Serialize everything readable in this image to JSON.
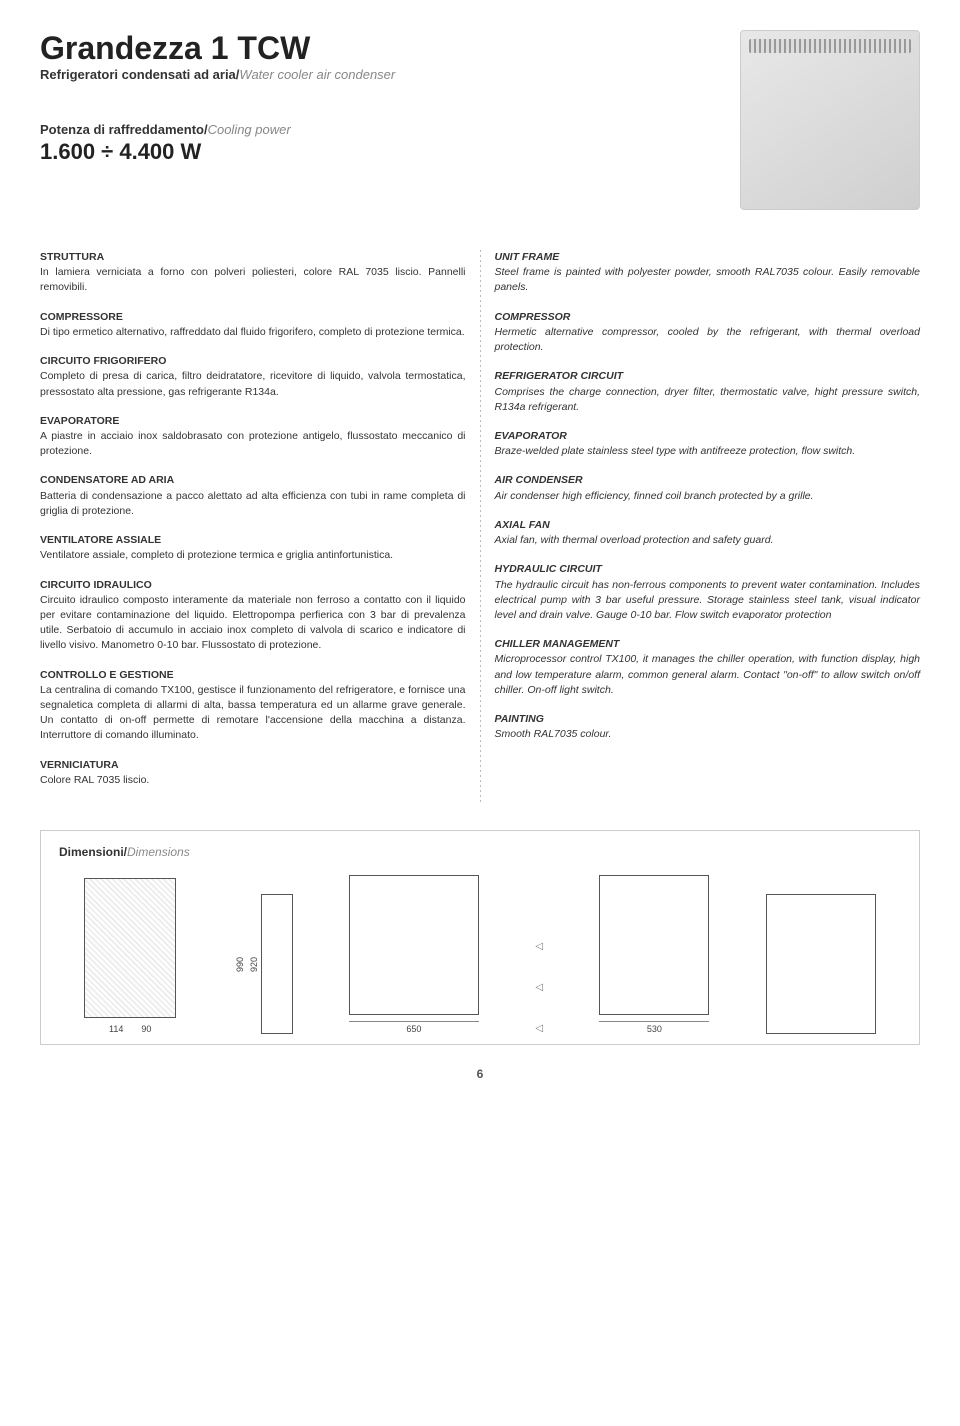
{
  "title": "Grandezza 1 TCW",
  "subtitle_it": "Refrigeratori condensati ad aria/",
  "subtitle_en": "Water cooler air condenser",
  "power_label_it": "Potenza di raffreddamento/",
  "power_label_en": "Cooling power",
  "power_value": "1.600 ÷ 4.400 W",
  "sections_it": [
    {
      "h": "STRUTTURA",
      "b": "In lamiera verniciata a forno con polveri poliesteri, colore RAL 7035 liscio. Pannelli removibili."
    },
    {
      "h": "COMPRESSORE",
      "b": "Di tipo ermetico alternativo, raffreddato dal fluido frigorifero, completo di protezione termica."
    },
    {
      "h": "CIRCUITO FRIGORIFERO",
      "b": "Completo di presa di carica, filtro deidratatore, ricevitore di liquido, valvola termostatica, pressostato alta pressione, gas refrigerante R134a."
    },
    {
      "h": "EVAPORATORE",
      "b": "A piastre in acciaio inox saldobrasato con protezione antigelo, flussostato meccanico di protezione."
    },
    {
      "h": "CONDENSATORE AD ARIA",
      "b": "Batteria di condensazione a pacco alettato ad alta efficienza con tubi in rame completa di griglia di protezione."
    },
    {
      "h": "VENTILATORE ASSIALE",
      "b": "Ventilatore assiale, completo di protezione termica e griglia antinfortunistica."
    },
    {
      "h": "CIRCUITO IDRAULICO",
      "b": "Circuito idraulico composto interamente da materiale non ferroso a contatto con il liquido per evitare contaminazione del liquido. Elettropompa perfierica con 3 bar di prevalenza utile. Serbatoio di accumulo in acciaio inox completo di valvola di scarico e indicatore di livello visivo. Manometro 0-10 bar. Flussostato di protezione."
    },
    {
      "h": "CONTROLLO E GESTIONE",
      "b": "La centralina di comando TX100, gestisce il funzionamento del refrigeratore, e fornisce una segnaletica completa di allarmi di alta, bassa temperatura ed un allarme grave generale.\nUn contatto di on-off permette di remotare l'accensione della macchina a distanza. Interruttore di comando illuminato."
    },
    {
      "h": "VERNICIATURA",
      "b": "Colore RAL 7035 liscio."
    }
  ],
  "sections_en": [
    {
      "h": "UNIT FRAME",
      "b": "Steel frame is painted with polyester powder, smooth RAL7035 colour. Easily removable panels."
    },
    {
      "h": "COMPRESSOR",
      "b": "Hermetic alternative compressor, cooled by the refrigerant, with thermal overload protection."
    },
    {
      "h": "REFRIGERATOR CIRCUIT",
      "b": "Comprises the charge connection, dryer filter, thermostatic valve, hight pressure switch, R134a refrigerant."
    },
    {
      "h": "EVAPORATOR",
      "b": "Braze-welded plate stainless steel type with antifreeze protection, flow switch."
    },
    {
      "h": "AIR CONDENSER",
      "b": "Air condenser high efficiency, finned coil branch protected by a grille."
    },
    {
      "h": "AXIAL FAN",
      "b": "Axial fan, with thermal overload protection and safety guard."
    },
    {
      "h": "HYDRAULIC CIRCUIT",
      "b": "The hydraulic circuit has non-ferrous components to prevent water contamination. Includes electrical pump with 3 bar useful pressure. Storage stainless steel tank, visual indicator level and drain valve. Gauge 0-10 bar. Flow switch evaporator protection"
    },
    {
      "h": "CHILLER MANAGEMENT",
      "b": "Microprocessor control TX100, it manages the chiller operation, with function display, high and low temperature alarm, common general alarm. Contact \"on-off\" to allow switch on/off chiller. On-off light switch."
    },
    {
      "h": "PAINTING",
      "b": "Smooth RAL7035 colour."
    }
  ],
  "dims_title_it": "Dimensioni/",
  "dims_title_en": "Dimensions",
  "dims": {
    "h1": "990",
    "h2": "920",
    "w_side": "90",
    "w_front": "650",
    "w_frontb": "530",
    "base": "114"
  },
  "pagenum": "6",
  "colors": {
    "text": "#333333",
    "muted": "#888888",
    "rule": "#bbbbbb"
  }
}
